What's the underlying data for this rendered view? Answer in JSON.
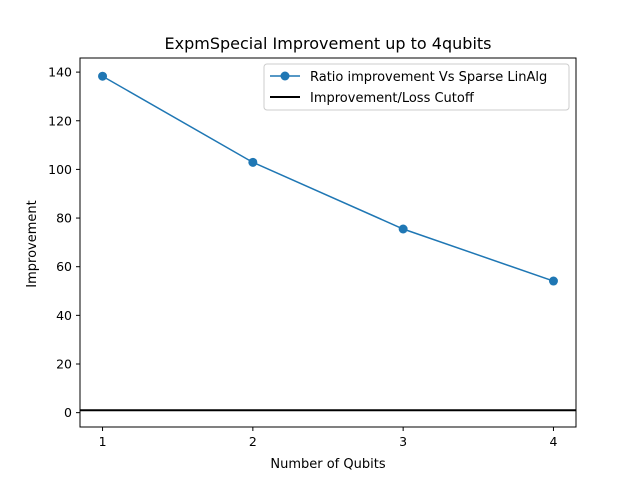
{
  "chart_data": {
    "type": "line",
    "title": "ExpmSpecial Improvement up to 4qubits",
    "xlabel": "Number of Qubits",
    "ylabel": "Improvement",
    "xlim": [
      0.85,
      4.15
    ],
    "ylim": [
      -5.9,
      145.8
    ],
    "xticks": [
      1,
      2,
      3,
      4
    ],
    "yticks": [
      0,
      20,
      40,
      60,
      80,
      100,
      120,
      140
    ],
    "grid": false,
    "legend_position": "top-right",
    "series": [
      {
        "name": "Ratio improvement Vs Sparse LinAlg",
        "x": [
          1,
          2,
          3,
          4
        ],
        "y": [
          138.3,
          102.9,
          75.5,
          54.1
        ],
        "color": "#1f77b4",
        "marker": "circle"
      }
    ],
    "hlines": [
      {
        "name": "Improvement/Loss Cutoff",
        "y": 1,
        "color": "#000000"
      }
    ]
  }
}
